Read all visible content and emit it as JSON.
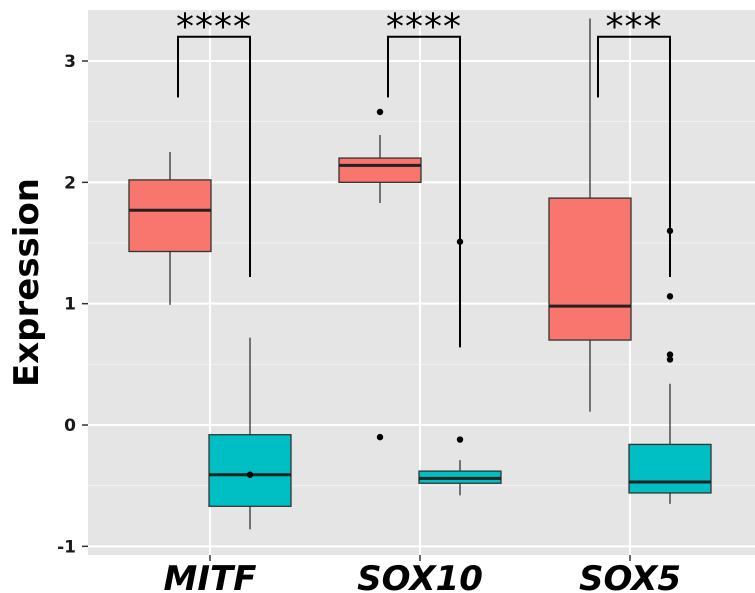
{
  "chart_data": {
    "type": "boxplot",
    "title": "",
    "ylabel": "Expression",
    "xlabel": "",
    "ylim": [
      -1.1,
      3.35
    ],
    "yticks": [
      -1,
      0,
      1,
      2,
      3
    ],
    "ytick_labels": [
      "-1",
      "0",
      "1",
      "2",
      "3"
    ],
    "categories": [
      "MITF",
      "SOX10",
      "SOX5"
    ],
    "series_colors": [
      "#F8766D",
      "#00BFC4"
    ],
    "grid": true,
    "panel_background": "#E5E5E5",
    "boxes": [
      {
        "category": "MITF",
        "series": 0,
        "whisker_low": 0.99,
        "q1": 1.43,
        "median": 1.77,
        "q3": 2.02,
        "whisker_high": 2.25,
        "outliers": []
      },
      {
        "category": "MITF",
        "series": 1,
        "whisker_low": -0.86,
        "q1": -0.67,
        "median": -0.41,
        "q3": -0.08,
        "whisker_high": 0.72,
        "outliers": [
          -0.41
        ]
      },
      {
        "category": "SOX10",
        "series": 0,
        "whisker_low": 1.83,
        "q1": 2.0,
        "median": 2.14,
        "q3": 2.2,
        "whisker_high": 2.39,
        "outliers": [
          2.58,
          -0.1
        ]
      },
      {
        "category": "SOX10",
        "series": 1,
        "whisker_low": -0.58,
        "q1": -0.48,
        "median": -0.44,
        "q3": -0.38,
        "whisker_high": -0.29,
        "outliers": [
          1.51,
          -0.12
        ]
      },
      {
        "category": "SOX5",
        "series": 0,
        "whisker_low": 0.11,
        "q1": 0.7,
        "median": 0.98,
        "q3": 1.87,
        "whisker_high": 3.35,
        "outliers": []
      },
      {
        "category": "SOX5",
        "series": 1,
        "whisker_low": -0.65,
        "q1": -0.56,
        "median": -0.47,
        "q3": -0.16,
        "whisker_high": 0.34,
        "outliers": [
          1.6,
          1.06,
          0.58,
          0.54
        ]
      }
    ],
    "significance": [
      {
        "category": "MITF",
        "label": "****",
        "left_y": 2.7,
        "right_y": 1.22,
        "top_y": 3.2
      },
      {
        "category": "SOX10",
        "label": "****",
        "left_y": 2.7,
        "right_y": 0.64,
        "top_y": 3.2
      },
      {
        "category": "SOX5",
        "label": "***",
        "left_y": 2.7,
        "right_y": 1.22,
        "top_y": 3.2
      }
    ]
  }
}
